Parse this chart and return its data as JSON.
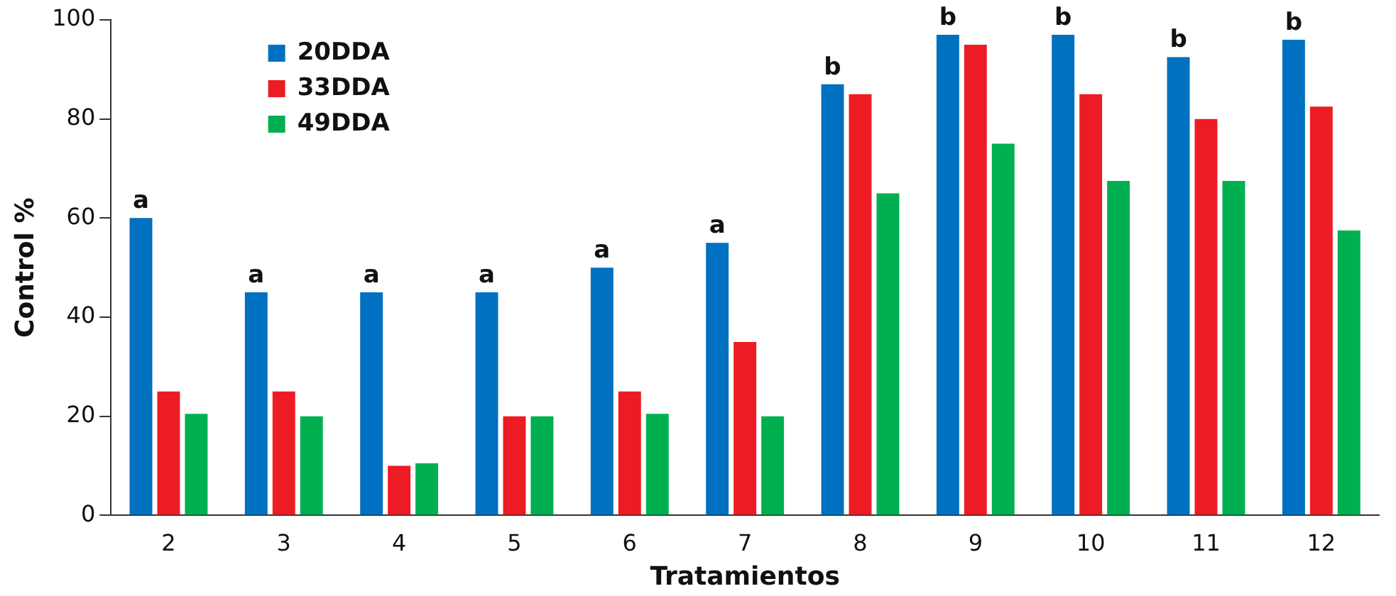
{
  "chart_data": {
    "type": "bar",
    "xlabel": "Tratamientos",
    "ylabel": "Control %",
    "categories": [
      "2",
      "3",
      "4",
      "5",
      "6",
      "7",
      "8",
      "9",
      "10",
      "11",
      "12"
    ],
    "series": [
      {
        "name": "20DDA",
        "color": "#0070c0",
        "values": [
          60,
          45,
          45,
          45,
          50,
          55,
          87,
          97,
          97,
          92.5,
          96
        ]
      },
      {
        "name": "33DDA",
        "color": "#ed1c24",
        "values": [
          25,
          25,
          10,
          20,
          25,
          35,
          85,
          95,
          85,
          80,
          82.5
        ]
      },
      {
        "name": "49DDA",
        "color": "#00b050",
        "values": [
          20.5,
          20,
          10.5,
          20,
          20.5,
          20,
          65,
          75,
          67.5,
          67.5,
          57.5
        ]
      }
    ],
    "ylim": [
      0,
      100
    ],
    "yticks": [
      0,
      20,
      40,
      60,
      80,
      100
    ],
    "grid": false,
    "legend": "top left",
    "annotations": [
      "a",
      "a",
      "a",
      "a",
      "a",
      "a",
      "b",
      "b",
      "b",
      "b",
      "b"
    ]
  }
}
